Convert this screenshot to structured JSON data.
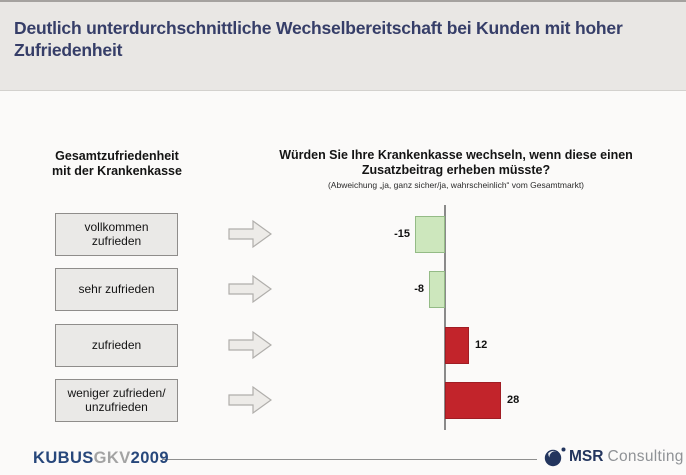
{
  "title": "Deutlich unterdurchschnittliche Wechselbereitschaft bei Kunden mit hoher Zufriedenheit",
  "left_header": {
    "line1": "Gesamtzufriedenheit",
    "line2": "mit der Krankenkasse"
  },
  "question": {
    "line1": "Würden Sie Ihre Krankenkasse wechseln, wenn diese einen",
    "line2": "Zusatzbeitrag erheben müsste?",
    "note": "(Abweichung „ja, ganz sicher/ja, wahrscheinlich“ vom Gesamtmarkt)"
  },
  "categories": [
    {
      "box_label": "vollkommen\nzufrieden"
    },
    {
      "box_label": "sehr zufrieden"
    },
    {
      "box_label": "zufrieden"
    },
    {
      "box_label": "weniger zufrieden/\nunzufrieden"
    }
  ],
  "chart_data": {
    "type": "bar",
    "orientation": "horizontal",
    "categories": [
      "vollkommen zufrieden",
      "sehr zufrieden",
      "zufrieden",
      "weniger zufrieden/unzufrieden"
    ],
    "values": [
      -15,
      -8,
      12,
      28
    ],
    "baseline_value": 0,
    "value_labels": [
      "-15",
      "-8",
      "12",
      "28"
    ],
    "colors": {
      "negative_fill": "#cde7bd",
      "negative_border": "#94bb86",
      "positive_fill": "#c2242b",
      "positive_border": "#a01d24",
      "axis": "#8a8a8a",
      "arrow_fill": "#edebe8",
      "arrow_border": "#b0aeab"
    }
  },
  "footer": {
    "kubus": "KUBUS",
    "gkv": "GKV",
    "year": "2009",
    "msr": "MSR",
    "consulting": "Consulting"
  }
}
